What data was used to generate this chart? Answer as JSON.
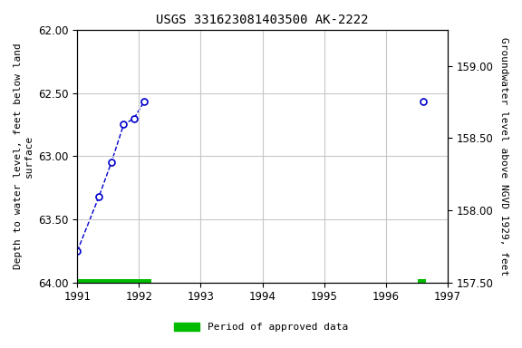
{
  "title": "USGS 331623081403500 AK-2222",
  "ylabel_left": "Depth to water level, feet below land\nsurface",
  "ylabel_right": "Groundwater level above NGVD 1929, feet",
  "ylim_left": [
    64.0,
    62.0
  ],
  "ylim_right": [
    157.5,
    159.25
  ],
  "yticks_left": [
    62.0,
    62.5,
    63.0,
    63.5,
    64.0
  ],
  "yticks_right": [
    157.5,
    158.0,
    158.5,
    159.0
  ],
  "xlim": [
    1991.0,
    1997.0
  ],
  "xticks": [
    1991,
    1992,
    1993,
    1994,
    1995,
    1996,
    1997
  ],
  "cluster_x": [
    1991.0,
    1991.35,
    1991.55,
    1991.75,
    1991.92,
    1992.08
  ],
  "cluster_y": [
    63.75,
    63.32,
    63.05,
    62.75,
    62.7,
    62.57
  ],
  "isolated_x": [
    1996.6
  ],
  "isolated_y": [
    62.57
  ],
  "line_color": "#0000cc",
  "marker_facecolor": "#ffffff",
  "approved_segments": [
    {
      "x_start": 1991.0,
      "x_end": 1992.2,
      "y_center": 64.0
    },
    {
      "x_start": 1996.52,
      "x_end": 1996.65,
      "y_center": 64.0
    }
  ],
  "approved_color": "#00bb00",
  "approved_bar_height": 0.05,
  "background_color": "#ffffff",
  "plot_bg_color": "#ffffff",
  "grid_color": "#c8c8c8",
  "title_fontsize": 10,
  "label_fontsize": 8,
  "tick_fontsize": 8.5
}
